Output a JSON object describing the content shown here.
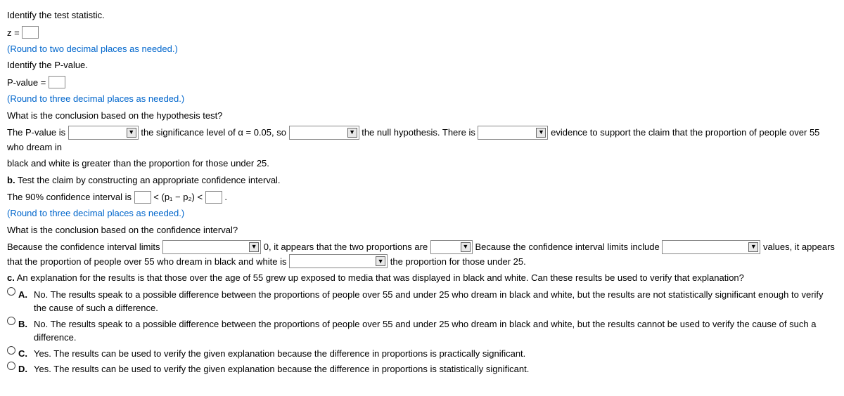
{
  "q_test_stat": "Identify the test statistic.",
  "z_label": "z =",
  "hint_two_dec": "(Round to two decimal places as needed.)",
  "q_pvalue": "Identify the P-value.",
  "pvalue_label": "P-value =",
  "hint_three_dec": "(Round to three decimal places as needed.)",
  "q_conclusion_hyp": "What is the conclusion based on the hypothesis test?",
  "hyp_part1": "The P-value is",
  "hyp_part2": "the significance level of α = 0.05, so",
  "hyp_part3": "the null hypothesis. There is",
  "hyp_part4": "evidence to support the claim that the proportion of people over 55 who dream in",
  "hyp_part5": "black and white is greater than the proportion for those under 25.",
  "part_b": "b.",
  "part_b_text": "Test the claim by constructing an appropriate confidence interval.",
  "ci_part1": "The 90% confidence interval is",
  "ci_mid": "< (p₁ − p₂) <",
  "ci_end": ".",
  "q_conclusion_ci": "What is the conclusion based on the confidence interval?",
  "ci_sent_part1": "Because the confidence interval limits",
  "ci_sent_part2": "0, it appears that the two proportions are",
  "ci_sent_part3": "Because the confidence interval limits include",
  "ci_sent_part4": "values, it appears that the",
  "ci_sent_part5": "proportion of people over 55 who dream in black and white is",
  "ci_sent_part6": "the proportion for those under 25.",
  "part_c": "c.",
  "part_c_text": "An explanation for the results is that those over the age of 55 grew up exposed to media that was displayed in black and white. Can these results be used to verify that explanation?",
  "opt_a_letter": "A.",
  "opt_a_text": "No. The results speak to a possible difference between the proportions of people over 55 and under 25 who dream in black and white, but the results are not statistically significant enough to verify the cause of such a difference.",
  "opt_b_letter": "B.",
  "opt_b_text": "No. The results speak to a possible difference between the proportions of people over 55 and under 25 who dream in black and white, but the results cannot be used to verify the cause of such a difference.",
  "opt_c_letter": "C.",
  "opt_c_text": "Yes. The results can be used to verify the given explanation because the difference in proportions is practically significant.",
  "opt_d_letter": "D.",
  "opt_d_text": "Yes. The results can be used to verify the given explanation because the difference in proportions is statistically significant.",
  "arrow": "▼"
}
